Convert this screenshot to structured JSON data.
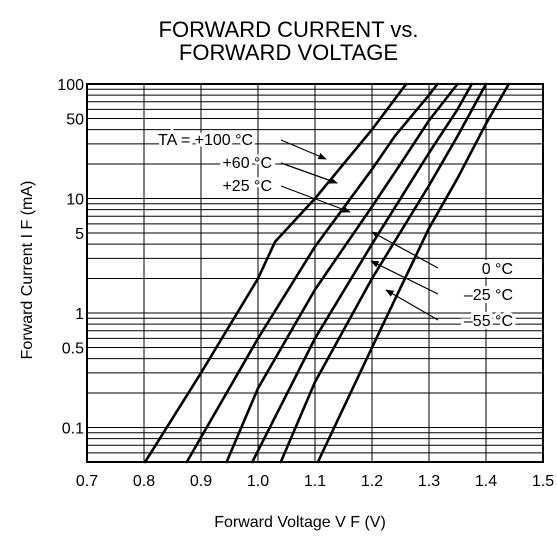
{
  "chart_data": {
    "type": "line",
    "title_lines": [
      "FORWARD CURRENT vs.",
      "FORWARD VOLTAGE"
    ],
    "xlabel": "Forward Voltage  V F (V)",
    "ylabel": "Forward Current  I F (mA)",
    "xlim": [
      0.7,
      1.5
    ],
    "ylim": [
      0.05,
      100
    ],
    "yscale": "log",
    "grid": true,
    "x_ticks": [
      "0.7",
      "0.8",
      "0.9",
      "1.0",
      "1.1",
      "1.2",
      "1.3",
      "1.4",
      "1.5"
    ],
    "y_ticks": [
      {
        "value": 100,
        "label": "100"
      },
      {
        "value": 50,
        "label": "50"
      },
      {
        "value": 10,
        "label": "10"
      },
      {
        "value": 5,
        "label": "5"
      },
      {
        "value": 1,
        "label": "1"
      },
      {
        "value": 0.5,
        "label": "0.5"
      },
      {
        "value": 0.1,
        "label": "0.1"
      }
    ],
    "series": [
      {
        "name": "TA = +100 °C",
        "points": [
          [
            0.802,
            0.05
          ],
          [
            0.9,
            0.3
          ],
          [
            1.0,
            2.0
          ],
          [
            1.03,
            4.2
          ],
          [
            1.1,
            10
          ],
          [
            1.2,
            40
          ],
          [
            1.26,
            100
          ]
        ]
      },
      {
        "name": "+60 °C",
        "points": [
          [
            0.875,
            0.05
          ],
          [
            1.0,
            0.6
          ],
          [
            1.1,
            3.8
          ],
          [
            1.2,
            18
          ],
          [
            1.24,
            35
          ],
          [
            1.3,
            80
          ],
          [
            1.315,
            100
          ]
        ]
      },
      {
        "name": "+25 °C",
        "points": [
          [
            0.945,
            0.05
          ],
          [
            1.0,
            0.22
          ],
          [
            1.1,
            1.6
          ],
          [
            1.2,
            8.5
          ],
          [
            1.25,
            20
          ],
          [
            1.3,
            48
          ],
          [
            1.35,
            100
          ]
        ]
      },
      {
        "name": "0 °C",
        "points": [
          [
            0.99,
            0.05
          ],
          [
            1.1,
            0.6
          ],
          [
            1.2,
            4.0
          ],
          [
            1.3,
            25
          ],
          [
            1.35,
            60
          ],
          [
            1.375,
            100
          ]
        ]
      },
      {
        "name": "–25 °C",
        "points": [
          [
            1.04,
            0.05
          ],
          [
            1.1,
            0.25
          ],
          [
            1.2,
            2.0
          ],
          [
            1.3,
            13
          ],
          [
            1.35,
            35
          ],
          [
            1.4,
            100
          ]
        ]
      },
      {
        "name": "–55 °C",
        "points": [
          [
            1.105,
            0.05
          ],
          [
            1.2,
            0.5
          ],
          [
            1.3,
            5.5
          ],
          [
            1.35,
            15
          ],
          [
            1.4,
            45
          ],
          [
            1.44,
            100
          ]
        ]
      }
    ],
    "annotations": [
      {
        "text": "TA = +100 °C",
        "series": 0
      },
      {
        "text": "+60 °C",
        "series": 1
      },
      {
        "text": "+25 °C",
        "series": 2
      },
      {
        "text": "0 °C",
        "series": 3
      },
      {
        "text": "–25 °C",
        "series": 4
      },
      {
        "text": "–55 °C",
        "series": 5
      }
    ]
  }
}
